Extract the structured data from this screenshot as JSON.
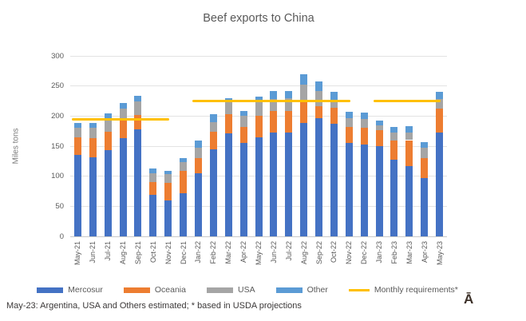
{
  "footnote": "May-23: Argentina, USA and Others estimated; * based in USDA projections",
  "watermark": "Ā",
  "colors": {
    "mercosur": "#4472C4",
    "oceania": "#ED7D31",
    "usa": "#A5A5A5",
    "other": "#5B9BD5",
    "requirements_line": "#FFC000",
    "title_text": "#595959",
    "gridline": "#E3E3E3"
  },
  "chart_data": {
    "type": "bar",
    "stacked": true,
    "title": "Beef exports to China",
    "xlabel": "",
    "ylabel": "Miles tons",
    "ylim": [
      0,
      300
    ],
    "ytick_step": 50,
    "grid": true,
    "legend_position": "bottom",
    "categories": [
      "May-21",
      "Jun-21",
      "Jul-21",
      "Aug-21",
      "Sep-21",
      "Oct-21",
      "Nov-21",
      "Dec-21",
      "Jan-22",
      "Feb-22",
      "Mar-22",
      "Apr-22",
      "May-22",
      "Jun-22",
      "Jul-22",
      "Aug-22",
      "Sep-22",
      "Oct-22",
      "Nov-22",
      "Dec-22",
      "Jan-23",
      "Feb-23",
      "Mar-23",
      "Apr-23",
      "May-23"
    ],
    "series": [
      {
        "name": "Mercosur",
        "color": "#4472C4",
        "values": [
          136,
          131,
          144,
          163,
          178,
          69,
          60,
          72,
          105,
          145,
          171,
          155,
          165,
          173,
          172,
          188,
          196,
          187,
          155,
          153,
          150,
          128,
          117,
          97,
          173
        ]
      },
      {
        "name": "Oceania",
        "color": "#ED7D31",
        "values": [
          28,
          32,
          30,
          29,
          24,
          21,
          29,
          37,
          25,
          29,
          32,
          27,
          36,
          35,
          37,
          36,
          20,
          27,
          27,
          27,
          26,
          31,
          43,
          33,
          39
        ]
      },
      {
        "name": "USA",
        "color": "#A5A5A5",
        "values": [
          17,
          17,
          23,
          20,
          22,
          15,
          14,
          14,
          18,
          16,
          20,
          18,
          22,
          21,
          21,
          28,
          26,
          13,
          14,
          15,
          8,
          14,
          13,
          18,
          16
        ]
      },
      {
        "name": "Other",
        "color": "#5B9BD5",
        "values": [
          8,
          8,
          7,
          10,
          10,
          8,
          6,
          7,
          11,
          13,
          7,
          9,
          10,
          13,
          12,
          17,
          15,
          13,
          11,
          11,
          8,
          9,
          10,
          9,
          12
        ]
      }
    ],
    "reference_line": {
      "name": "Monthly requirements*",
      "color": "#FFC000",
      "segments": [
        {
          "from": "May-21",
          "to": "Nov-21",
          "value": 195
        },
        {
          "from": "Jan-22",
          "to": "Nov-22",
          "value": 225
        },
        {
          "from": "Jan-23",
          "to": "May-23",
          "value": 225
        }
      ]
    }
  }
}
